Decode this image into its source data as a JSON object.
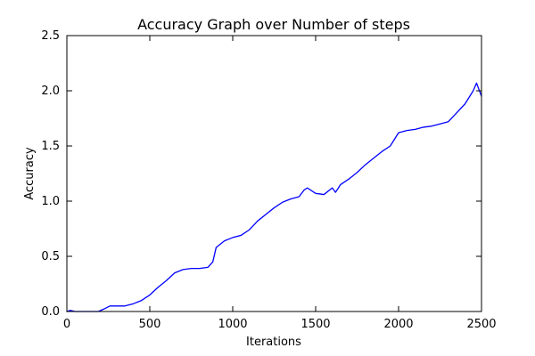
{
  "chart_data": {
    "type": "line",
    "title": "Accuracy Graph over Number of steps",
    "xlabel": "Iterations",
    "ylabel": "Accuracy",
    "xlim": [
      0,
      2500
    ],
    "ylim": [
      0.0,
      2.5
    ],
    "xticks": [
      0,
      500,
      1000,
      1500,
      2000,
      2500
    ],
    "xtick_labels": [
      "0",
      "500",
      "1000",
      "1500",
      "2000",
      "2500"
    ],
    "yticks": [
      0.0,
      0.5,
      1.0,
      1.5,
      2.0,
      2.5
    ],
    "ytick_labels": [
      "0.0",
      "0.5",
      "1.0",
      "1.5",
      "2.0",
      "2.5"
    ],
    "grid": false,
    "series": [
      {
        "color": "#0000ff",
        "x": [
          0,
          20,
          50,
          100,
          150,
          190,
          220,
          260,
          300,
          350,
          400,
          450,
          500,
          550,
          600,
          650,
          700,
          750,
          800,
          850,
          880,
          900,
          950,
          1000,
          1050,
          1100,
          1150,
          1200,
          1250,
          1300,
          1350,
          1400,
          1430,
          1450,
          1500,
          1550,
          1600,
          1620,
          1650,
          1700,
          1750,
          1800,
          1850,
          1900,
          1950,
          2000,
          2050,
          2100,
          2150,
          2200,
          2250,
          2300,
          2350,
          2400,
          2450,
          2470,
          2500
        ],
        "y": [
          0.0,
          0.01,
          0.0,
          -0.01,
          -0.01,
          0.0,
          0.02,
          0.05,
          0.05,
          0.05,
          0.07,
          0.1,
          0.15,
          0.22,
          0.28,
          0.35,
          0.38,
          0.39,
          0.39,
          0.4,
          0.45,
          0.58,
          0.64,
          0.67,
          0.69,
          0.74,
          0.82,
          0.88,
          0.94,
          0.99,
          1.02,
          1.04,
          1.1,
          1.12,
          1.07,
          1.06,
          1.12,
          1.08,
          1.15,
          1.2,
          1.26,
          1.33,
          1.39,
          1.45,
          1.5,
          1.62,
          1.64,
          1.65,
          1.67,
          1.68,
          1.7,
          1.72,
          1.8,
          1.88,
          2.0,
          2.07,
          1.95
        ]
      }
    ]
  }
}
